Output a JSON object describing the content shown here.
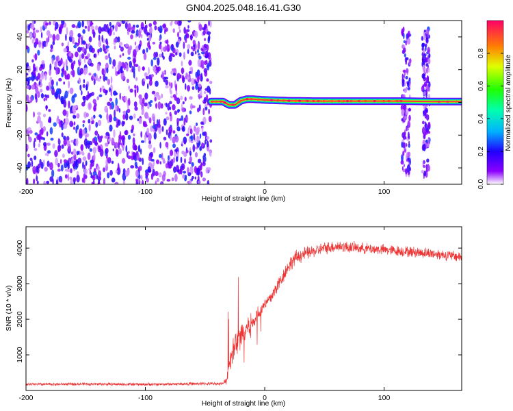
{
  "title": "GN04.2025.048.16.41.G30",
  "chart_data": [
    {
      "type": "heatmap",
      "xlabel": "Height of straight line (km)",
      "ylabel": "Frequency (Hz)",
      "xlim": [
        -200,
        165
      ],
      "ylim": [
        -50,
        50
      ],
      "xticks": [
        -200,
        -100,
        0,
        100
      ],
      "yticks": [
        -40,
        -20,
        0,
        20,
        40
      ],
      "colorbar": {
        "label": "Normalized spectral amplitude",
        "range": [
          0,
          1
        ],
        "ticks": [
          0.0,
          0.2,
          0.4,
          0.6,
          0.8
        ]
      },
      "regions": [
        {
          "x": [
            -200,
            -45
          ],
          "description_value": "broadband noise, low amplitude 0.05-0.3"
        },
        {
          "x": [
            -45,
            115
          ],
          "freq_hz": 0,
          "amplitude": 0.95
        },
        {
          "x": [
            115,
            122
          ],
          "freq_hz": [
            -45,
            45
          ],
          "amplitude": 0.2
        },
        {
          "x": [
            132,
            138
          ],
          "freq_hz": [
            -45,
            45
          ],
          "amplitude": 0.2
        },
        {
          "x": [
            140,
            165
          ],
          "freq_hz": 0,
          "amplitude": 0.95
        }
      ],
      "tone_track": {
        "x": [
          -45,
          -38,
          -35,
          -30,
          -25,
          -20,
          -15,
          -10,
          0,
          20,
          40,
          60,
          80,
          100,
          115,
          125,
          130,
          140,
          165
        ],
        "freq": [
          0.5,
          0.5,
          0.5,
          -1.5,
          -1.5,
          1.0,
          2.0,
          2.0,
          1.5,
          1.0,
          0.8,
          0.8,
          0.8,
          0.8,
          0.8,
          0.5,
          0.5,
          0.5,
          0.5
        ]
      },
      "grid": false
    },
    {
      "type": "line",
      "xlabel": "Height of straight line (km)",
      "ylabel": "SNR (10 * v/v)",
      "xlim": [
        -200,
        165
      ],
      "ylim": [
        0,
        4600
      ],
      "xticks": [
        -200,
        -100,
        0,
        100
      ],
      "yticks": [
        1000,
        2000,
        3000,
        4000
      ],
      "series": [
        {
          "color": "#ee3333",
          "x": [
            -200,
            -150,
            -100,
            -50,
            -35,
            -32,
            -30,
            -28,
            -25,
            -20,
            -15,
            -10,
            -5,
            0,
            5,
            10,
            15,
            20,
            25,
            30,
            40,
            50,
            60,
            80,
            100,
            120,
            140,
            165
          ],
          "values": [
            170,
            180,
            170,
            190,
            190,
            300,
            600,
            1000,
            1300,
            1500,
            1800,
            1900,
            2200,
            2400,
            2600,
            2900,
            3200,
            3500,
            3700,
            3800,
            3900,
            4000,
            4050,
            4000,
            3950,
            3900,
            3850,
            3750
          ],
          "noise": [
            50,
            50,
            50,
            50,
            50,
            150,
            300,
            350,
            450,
            450,
            400,
            350,
            300,
            250,
            250,
            250,
            250,
            250,
            250,
            250,
            200,
            200,
            200,
            180,
            180,
            180,
            180,
            180
          ]
        }
      ],
      "grid": false
    }
  ]
}
